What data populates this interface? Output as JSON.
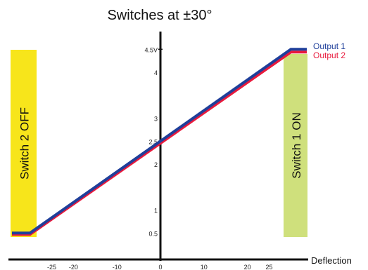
{
  "chart_data": {
    "type": "line",
    "title": "Switches at ±30°",
    "xlabel": "Deflection",
    "ylabel": "",
    "xlim": [
      -32,
      35
    ],
    "ylim": [
      0,
      5.4
    ],
    "grid": false,
    "legend_position": "top-right",
    "x_ticks": [
      {
        "value": -25,
        "label": "-25"
      },
      {
        "value": -20,
        "label": "-20"
      },
      {
        "value": -10,
        "label": "-10"
      },
      {
        "value": 0,
        "label": "0"
      },
      {
        "value": 10,
        "label": "10"
      },
      {
        "value": 20,
        "label": "20"
      },
      {
        "value": 25,
        "label": "25"
      }
    ],
    "y_ticks": [
      {
        "value": 0.5,
        "label": "0.5"
      },
      {
        "value": 1,
        "label": "1"
      },
      {
        "value": 2,
        "label": "2"
      },
      {
        "value": 2.5,
        "label": "2.5"
      },
      {
        "value": 3,
        "label": "3"
      },
      {
        "value": 4,
        "label": "4"
      },
      {
        "value": 4.5,
        "label": "4.5V"
      }
    ],
    "series": [
      {
        "name": "Output 1",
        "color": "#1f3f9a",
        "x": [
          -32,
          -30,
          30,
          35
        ],
        "y": [
          0.5,
          0.5,
          4.5,
          4.5
        ]
      },
      {
        "name": "Output 2",
        "color": "#e8193c",
        "x": [
          -32,
          -30,
          30,
          35
        ],
        "y": [
          0.47,
          0.47,
          4.44,
          4.44
        ]
      }
    ],
    "bands": [
      {
        "label": "Switch 2 OFF",
        "color": "#f7e51b",
        "x": [
          -35,
          -33
        ],
        "y": [
          0.5,
          4.5
        ]
      },
      {
        "label": "Switch 1 ON",
        "color": "#cfe07c",
        "x": [
          30,
          33
        ],
        "y": [
          0.5,
          4.4
        ]
      }
    ]
  }
}
